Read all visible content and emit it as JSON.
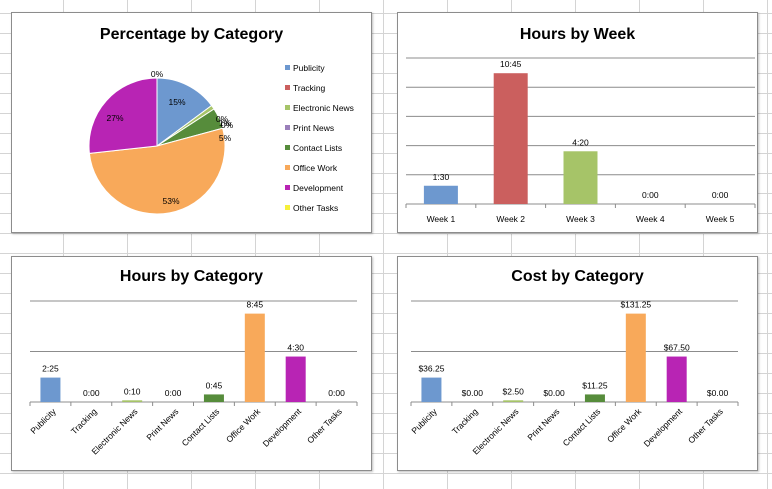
{
  "charts": {
    "pie": {
      "title": "Percentage by Category",
      "chart_data": {
        "type": "pie",
        "title": "Percentage by Category",
        "categories": [
          "Publicity",
          "Tracking",
          "Electronic News",
          "Print News",
          "Contact Lists",
          "Office Work",
          "Development",
          "Other Tasks"
        ],
        "values": [
          15,
          0,
          1,
          0,
          5,
          53,
          27,
          0
        ],
        "labels": [
          "15%",
          "0%",
          "1%",
          "0%",
          "5%",
          "53%",
          "27%",
          "0%"
        ],
        "legend_position": "right"
      }
    },
    "week": {
      "title": "Hours by Week",
      "chart_data": {
        "type": "bar",
        "title": "Hours by Week",
        "categories": [
          "Week 1",
          "Week 2",
          "Week 3",
          "Week 4",
          "Week 5"
        ],
        "values": [
          1.5,
          10.75,
          4.333,
          0,
          0
        ],
        "labels": [
          "1:30",
          "10:45",
          "4:20",
          "0:00",
          "0:00"
        ],
        "ylim": [
          0,
          12
        ]
      }
    },
    "hours": {
      "title": "Hours by Category",
      "chart_data": {
        "type": "bar",
        "title": "Hours by Category",
        "categories": [
          "Publicity",
          "Tracking",
          "Electronic News",
          "Print News",
          "Contact Lists",
          "Office Work",
          "Development",
          "Other Tasks"
        ],
        "values": [
          2.417,
          0,
          0.167,
          0,
          0.75,
          8.75,
          4.5,
          0
        ],
        "labels": [
          "2:25",
          "0:00",
          "0:10",
          "0:00",
          "0:45",
          "8:45",
          "4:30",
          "0:00"
        ],
        "ylim": [
          0,
          10
        ]
      }
    },
    "cost": {
      "title": "Cost by Category",
      "chart_data": {
        "type": "bar",
        "title": "Cost by Category",
        "categories": [
          "Publicity",
          "Tracking",
          "Electronic News",
          "Print News",
          "Contact Lists",
          "Office Work",
          "Development",
          "Other Tasks"
        ],
        "values": [
          36.25,
          0,
          2.5,
          0,
          11.25,
          131.25,
          67.5,
          0
        ],
        "labels": [
          "$36.25",
          "$0.00",
          "$2.50",
          "$0.00",
          "$11.25",
          "$131.25",
          "$67.50",
          "$0.00"
        ],
        "ylim": [
          0,
          150
        ]
      }
    }
  },
  "colors": {
    "category": [
      "#6d98cf",
      "#cb5f5e",
      "#a6c468",
      "#9a7fba",
      "#568c3b",
      "#f8a95a",
      "#b824b4",
      "#f6f03a"
    ],
    "gridline": "#8c8c8c",
    "axis": "#8c8c8c"
  }
}
